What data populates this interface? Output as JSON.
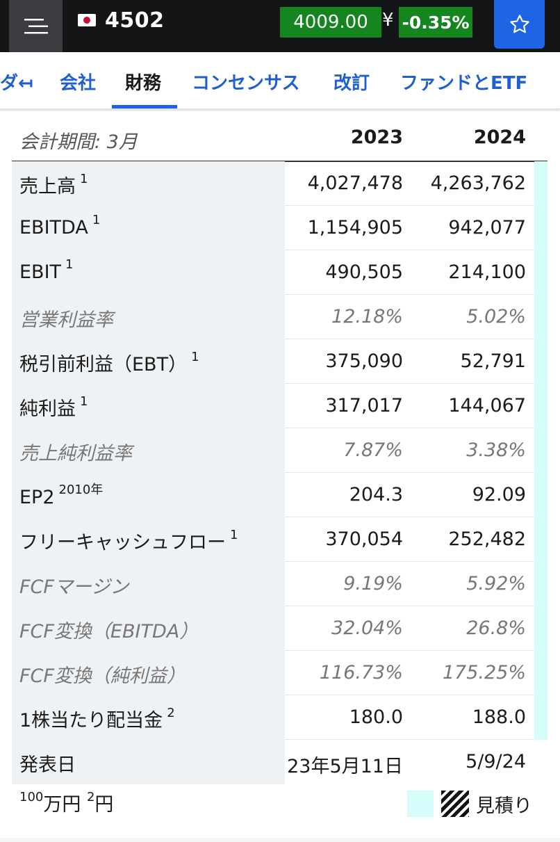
{
  "header": {
    "ticker": "4502",
    "price": "4009.00",
    "currency": "¥",
    "change": "-0.35%",
    "colors": {
      "bar": "#131517",
      "up_down": "#14851f",
      "accent": "#1f63e6"
    }
  },
  "tabs": [
    {
      "label": "ダ↤",
      "active": false
    },
    {
      "label": "会社",
      "active": false
    },
    {
      "label": "財務",
      "active": true
    },
    {
      "label": "コンセンサス",
      "active": false
    },
    {
      "label": "改訂",
      "active": false
    },
    {
      "label": "ファンドとETF",
      "active": false
    }
  ],
  "table": {
    "period_label": "会計期間: 3月",
    "years": [
      "2023",
      "2024"
    ],
    "rows": [
      {
        "label": "売上高",
        "note": "1",
        "v2023": "4,027,478",
        "v2024": "4,263,762",
        "italic": false
      },
      {
        "label": "EBITDA",
        "note": "1",
        "v2023": "1,154,905",
        "v2024": "942,077",
        "italic": false
      },
      {
        "label": "EBIT",
        "note": "1",
        "v2023": "490,505",
        "v2024": "214,100",
        "italic": false
      },
      {
        "label": "営業利益率",
        "note": "",
        "v2023": "12.18%",
        "v2024": "5.02%",
        "italic": true
      },
      {
        "label": "税引前利益（EBT）",
        "note": "1",
        "v2023": "375,090",
        "v2024": "52,791",
        "italic": false
      },
      {
        "label": "純利益",
        "note": "1",
        "v2023": "317,017",
        "v2024": "144,067",
        "italic": false
      },
      {
        "label": "売上純利益率",
        "note": "",
        "v2023": "7.87%",
        "v2024": "3.38%",
        "italic": true
      },
      {
        "label": "EP2",
        "note": "2010年",
        "v2023": "204.3",
        "v2024": "92.09",
        "italic": false
      },
      {
        "label": "フリーキャッシュフロー",
        "note": "1",
        "v2023": "370,054",
        "v2024": "252,482",
        "italic": false
      },
      {
        "label": "FCFマージン",
        "note": "",
        "v2023": "9.19%",
        "v2024": "5.92%",
        "italic": true
      },
      {
        "label": "FCF変換（EBITDA）",
        "note": "",
        "v2023": "32.04%",
        "v2024": "26.8%",
        "italic": true
      },
      {
        "label": "FCF変換（純利益）",
        "note": "",
        "v2023": "116.73%",
        "v2024": "175.25%",
        "italic": true
      },
      {
        "label": "1株当たり配当金",
        "note": "2",
        "v2023": "180.0",
        "v2024": "188.0",
        "italic": false
      },
      {
        "label": "発表日",
        "note": "",
        "v2023": "23年5月11日",
        "v2024": "5/9/24",
        "italic": false
      }
    ]
  },
  "footer": {
    "note1_sup": "100",
    "note1_unit": "万円",
    "note2_sup": "2",
    "note2_unit": "円",
    "legend_label": "見積り"
  }
}
